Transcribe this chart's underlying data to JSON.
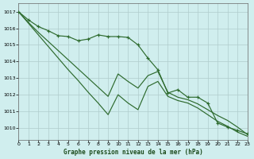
{
  "title": "Graphe pression niveau de la mer (hPa)",
  "background_color": "#d0eeee",
  "grid_color": "#b0cccc",
  "line_color": "#2d6a2d",
  "xlim": [
    0,
    23
  ],
  "ylim": [
    1009.3,
    1017.5
  ],
  "yticks": [
    1010,
    1011,
    1012,
    1013,
    1014,
    1015,
    1016,
    1017
  ],
  "xticks": [
    0,
    1,
    2,
    3,
    4,
    5,
    6,
    7,
    8,
    9,
    10,
    11,
    12,
    13,
    14,
    15,
    16,
    17,
    18,
    19,
    20,
    21,
    22,
    23
  ],
  "series1_x": [
    0,
    1,
    2,
    3,
    4,
    5,
    6,
    7,
    8,
    9,
    10,
    11,
    12,
    13,
    14,
    15,
    16,
    17,
    18,
    19,
    20,
    21,
    22,
    23
  ],
  "series1_y": [
    1017.0,
    1016.5,
    1016.1,
    1015.85,
    1015.55,
    1015.5,
    1015.25,
    1015.35,
    1015.6,
    1015.5,
    1015.5,
    1015.45,
    1015.0,
    1014.2,
    1013.5,
    1012.1,
    1012.3,
    1011.85,
    1011.85,
    1011.5,
    1010.3,
    1010.05,
    1009.85,
    1009.65
  ],
  "series2_x": [
    0,
    1,
    2,
    3,
    4,
    5,
    6,
    7,
    8,
    9,
    10,
    11,
    12,
    13,
    14,
    15,
    16,
    17,
    18,
    19,
    20,
    21,
    22,
    23
  ],
  "series2_y": [
    1017.0,
    1016.35,
    1015.75,
    1015.2,
    1014.65,
    1014.1,
    1013.55,
    1013.0,
    1012.45,
    1011.9,
    1013.25,
    1012.8,
    1012.4,
    1013.15,
    1013.4,
    1012.15,
    1011.85,
    1011.7,
    1011.45,
    1011.1,
    1010.75,
    1010.45,
    1010.05,
    1009.6
  ],
  "series3_x": [
    0,
    1,
    2,
    3,
    4,
    5,
    6,
    7,
    8,
    9,
    10,
    11,
    12,
    13,
    14,
    15,
    16,
    17,
    18,
    19,
    20,
    21,
    22,
    23
  ],
  "series3_y": [
    1017.0,
    1016.3,
    1015.6,
    1014.9,
    1014.2,
    1013.5,
    1012.85,
    1012.15,
    1011.5,
    1010.8,
    1012.0,
    1011.5,
    1011.1,
    1012.5,
    1012.8,
    1011.9,
    1011.65,
    1011.5,
    1011.2,
    1010.8,
    1010.4,
    1010.1,
    1009.75,
    1009.5
  ]
}
